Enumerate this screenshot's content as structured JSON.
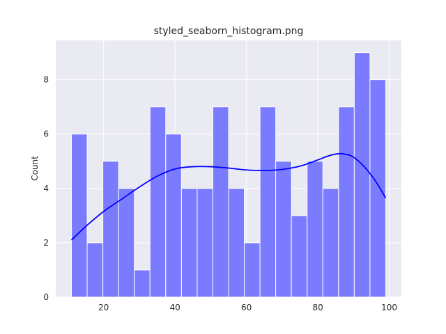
{
  "chart_data": {
    "type": "bar",
    "title": "styled_seaborn_histogram.png",
    "xlabel": "",
    "ylabel": "Count",
    "xlim": [
      6.6,
      103.4
    ],
    "ylim": [
      0,
      9.45
    ],
    "xticks": [
      20,
      40,
      60,
      80,
      100
    ],
    "yticks": [
      0,
      2,
      4,
      6,
      8
    ],
    "grid": true,
    "bin_start": 11,
    "bin_width": 4.4,
    "counts": [
      6,
      2,
      5,
      4,
      1,
      7,
      6,
      4,
      4,
      7,
      4,
      2,
      7,
      5,
      3,
      5,
      4,
      7,
      9,
      8
    ],
    "kde": {
      "x": [
        11,
        15,
        20,
        25,
        30,
        35,
        40,
        45,
        50,
        55,
        60,
        65,
        70,
        75,
        80,
        83,
        86,
        88,
        90,
        93,
        96,
        99
      ],
      "y": [
        2.1,
        2.6,
        3.15,
        3.6,
        4.05,
        4.45,
        4.72,
        4.8,
        4.8,
        4.75,
        4.68,
        4.66,
        4.7,
        4.82,
        5.05,
        5.2,
        5.28,
        5.25,
        5.15,
        4.8,
        4.3,
        3.65
      ]
    },
    "colors": {
      "background": "#eaeaf2",
      "grid": "#ffffff",
      "bar_fill": "#7b7bff",
      "bar_edge": "#ffffff",
      "kde": "#0000ff"
    }
  }
}
